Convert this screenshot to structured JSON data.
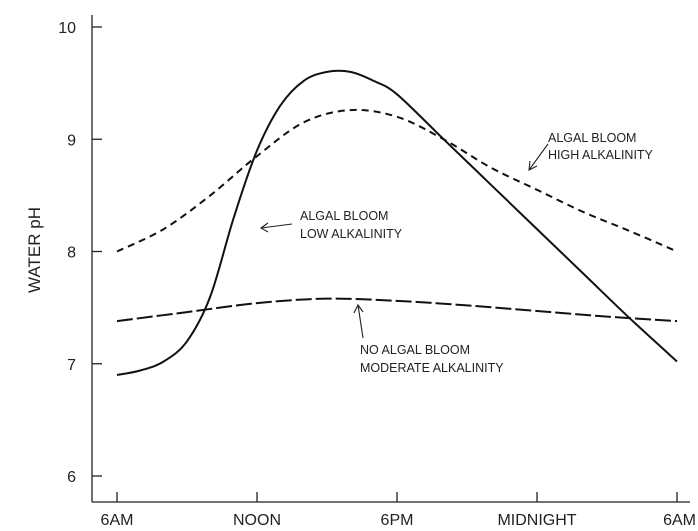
{
  "chart_data": {
    "type": "line",
    "ylabel": "WATER pH",
    "xlabel": "",
    "x_ticks": [
      {
        "x": 0,
        "label": "6AM"
      },
      {
        "x": 6,
        "label": "NOON"
      },
      {
        "x": 12,
        "label": "6PM"
      },
      {
        "x": 18,
        "label": "MIDNIGHT"
      },
      {
        "x": 24,
        "label": "6AM"
      }
    ],
    "y_ticks": [
      6,
      7,
      8,
      9,
      10
    ],
    "xlim": [
      0,
      24
    ],
    "ylim": [
      5.8,
      10.1
    ],
    "grid": false,
    "series": [
      {
        "style": "solid",
        "points": [
          [
            0,
            6.9
          ],
          [
            1,
            6.94
          ],
          [
            2,
            7.02
          ],
          [
            3,
            7.2
          ],
          [
            4,
            7.6
          ],
          [
            5,
            8.3
          ],
          [
            6,
            8.9
          ],
          [
            7,
            9.3
          ],
          [
            8,
            9.52
          ],
          [
            9,
            9.6
          ],
          [
            10,
            9.6
          ],
          [
            11,
            9.52
          ],
          [
            12,
            9.4
          ],
          [
            14,
            9.0
          ],
          [
            16,
            8.6
          ],
          [
            18,
            8.2
          ],
          [
            20,
            7.8
          ],
          [
            22,
            7.4
          ],
          [
            24,
            7.02
          ]
        ]
      },
      {
        "style": "dashed",
        "points": [
          [
            0,
            8.0
          ],
          [
            2,
            8.2
          ],
          [
            4,
            8.5
          ],
          [
            6,
            8.85
          ],
          [
            8,
            9.15
          ],
          [
            10,
            9.26
          ],
          [
            12,
            9.2
          ],
          [
            14,
            9.0
          ],
          [
            16,
            8.75
          ],
          [
            18,
            8.55
          ],
          [
            20,
            8.35
          ],
          [
            22,
            8.18
          ],
          [
            24,
            8.0
          ]
        ]
      },
      {
        "style": "long-dashed",
        "points": [
          [
            0,
            7.38
          ],
          [
            3,
            7.46
          ],
          [
            6,
            7.54
          ],
          [
            9,
            7.58
          ],
          [
            12,
            7.56
          ],
          [
            15,
            7.52
          ],
          [
            18,
            7.47
          ],
          [
            21,
            7.42
          ],
          [
            24,
            7.38
          ]
        ]
      }
    ],
    "annotations": [
      {
        "lines": [
          "ALGAL BLOOM",
          "HIGH ALKALINITY"
        ]
      },
      {
        "lines": [
          "ALGAL BLOOM",
          "LOW ALKALINITY"
        ]
      },
      {
        "lines": [
          "NO ALGAL BLOOM",
          "MODERATE ALKALINITY"
        ]
      }
    ]
  }
}
